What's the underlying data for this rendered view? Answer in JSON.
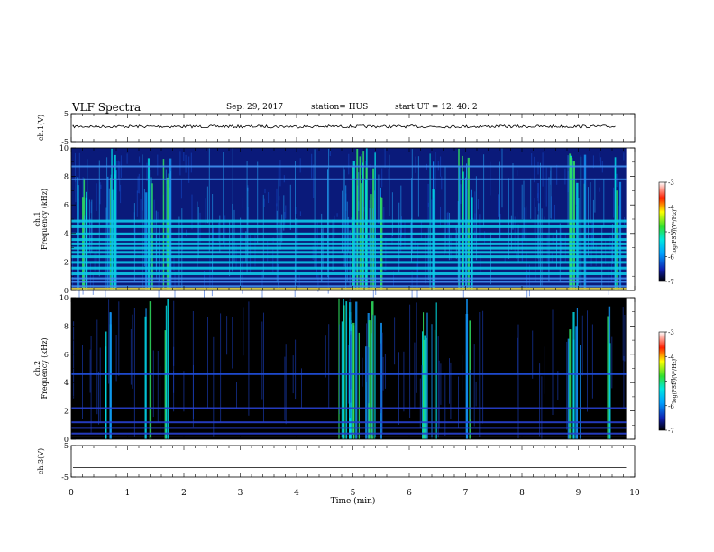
{
  "header": {
    "title": "VLF Spectra",
    "date": "Sep. 29, 2017",
    "station": "station= HUS",
    "start": "start  UT =   12: 40: 2"
  },
  "chart_data": [
    {
      "type": "line",
      "name": "channel-1-waveform",
      "ylabel": "ch.1(V)",
      "ylim": [
        -5,
        5
      ],
      "yticks": [
        "5",
        "-5"
      ],
      "approx_level": 0.4
    },
    {
      "type": "heatmap",
      "name": "channel-1-spectrogram",
      "ylabel": "ch.1\nFrequency (kHz)",
      "ylim": [
        0,
        10
      ],
      "yticks": [
        "0",
        "2",
        "4",
        "6",
        "8",
        "10"
      ],
      "colorbar": {
        "label": "log(PSD)(V²/Hz)",
        "ticks": [
          "-3",
          "-4",
          "-5",
          "-6",
          "-7"
        ],
        "range": [
          -7,
          -3
        ]
      },
      "background": "#0a1a7a",
      "narrowband_lines_khz": [
        0.3,
        0.6,
        0.85,
        1.2,
        1.6,
        2.0,
        2.4,
        2.7,
        3.0,
        3.3,
        3.6,
        4.0,
        4.5,
        4.9,
        7.8,
        8.7
      ],
      "bursts_min": [
        [
          0.05,
          0.3
        ],
        [
          0.55,
          0.8
        ],
        [
          1.3,
          1.45
        ],
        [
          1.6,
          1.75
        ],
        [
          4.85,
          5.5
        ],
        [
          6.3,
          6.45
        ],
        [
          6.8,
          7.1
        ],
        [
          8.8,
          9.2
        ],
        [
          9.6,
          9.75
        ]
      ]
    },
    {
      "type": "heatmap",
      "name": "channel-2-spectrogram",
      "ylabel": "ch.2\nFrequency (kHz)",
      "ylim": [
        0,
        10
      ],
      "yticks": [
        "0",
        "2",
        "4",
        "6",
        "8",
        "10"
      ],
      "colorbar": {
        "label": "log(PSD)(V²/Hz)",
        "ticks": [
          "-3",
          "-4",
          "-5",
          "-6",
          "-7"
        ],
        "range": [
          -7,
          -3
        ]
      },
      "background": "#000000",
      "narrowband_lines_khz": [
        0.4,
        0.8,
        1.2,
        2.2,
        4.6
      ],
      "bursts_min": [
        [
          0.55,
          0.72
        ],
        [
          1.3,
          1.42
        ],
        [
          1.63,
          1.72
        ],
        [
          4.7,
          5.5
        ],
        [
          6.2,
          6.5
        ],
        [
          7.0,
          7.1
        ],
        [
          8.8,
          9.05
        ],
        [
          9.5,
          9.6
        ]
      ]
    },
    {
      "type": "line",
      "name": "channel-3-waveform",
      "ylabel": "ch.3(V)",
      "ylim": [
        -5,
        5
      ],
      "yticks": [
        "5",
        "-5"
      ],
      "approx_level": -2.0
    }
  ],
  "xaxis": {
    "label": "Time (min)",
    "ticks": [
      "0",
      "1",
      "2",
      "3",
      "4",
      "5",
      "6",
      "7",
      "8",
      "9",
      "10"
    ],
    "range": [
      0,
      10
    ],
    "data_end": 9.85
  }
}
